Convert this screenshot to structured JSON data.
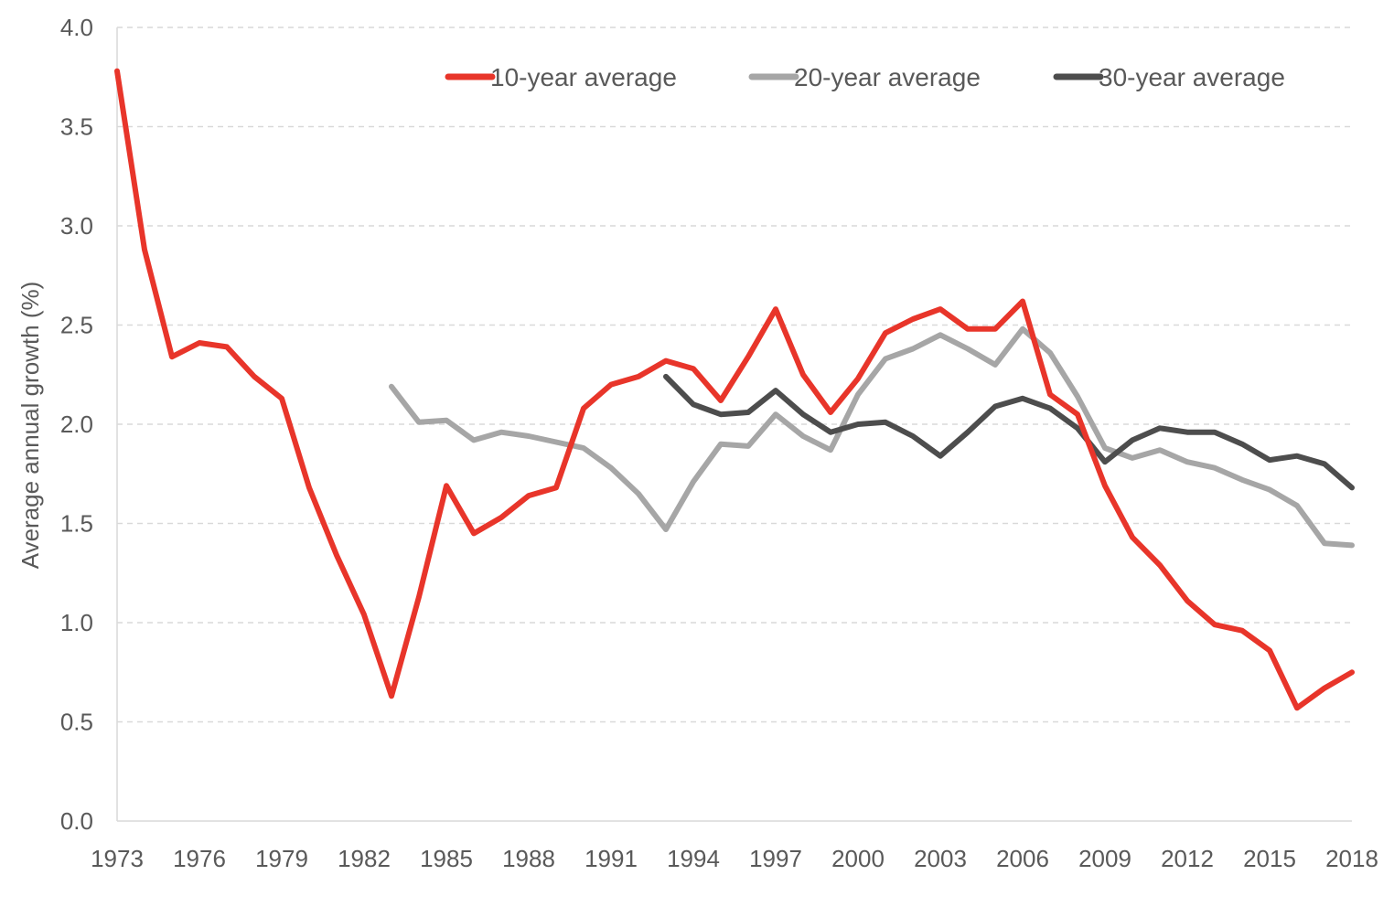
{
  "chart_data": {
    "type": "line",
    "title": "",
    "xlabel": "",
    "ylabel": "Average annual growth (%)",
    "xlim": [
      1973,
      2018
    ],
    "ylim": [
      0,
      4
    ],
    "yticks": [
      "0.0",
      "0.5",
      "1.0",
      "1.5",
      "2.0",
      "2.5",
      "3.0",
      "3.5",
      "4.0"
    ],
    "xticks": [
      "1973",
      "1976",
      "1979",
      "1982",
      "1985",
      "1988",
      "1991",
      "1994",
      "1997",
      "2000",
      "2003",
      "2006",
      "2009",
      "2012",
      "2015",
      "2018"
    ],
    "grid": "horizontal dashed",
    "legend_position": "top-right",
    "series": [
      {
        "name": "10-year average",
        "color": "#E8352A",
        "x": [
          1973,
          1974,
          1975,
          1976,
          1977,
          1978,
          1979,
          1980,
          1981,
          1982,
          1983,
          1984,
          1985,
          1986,
          1987,
          1988,
          1989,
          1990,
          1991,
          1992,
          1993,
          1994,
          1995,
          1996,
          1997,
          1998,
          1999,
          2000,
          2001,
          2002,
          2003,
          2004,
          2005,
          2006,
          2007,
          2008,
          2009,
          2010,
          2011,
          2012,
          2013,
          2014,
          2015,
          2016,
          2017,
          2018
        ],
        "values": [
          3.78,
          2.88,
          2.34,
          2.41,
          2.39,
          2.24,
          2.13,
          1.68,
          1.34,
          1.04,
          0.63,
          1.13,
          1.69,
          1.45,
          1.53,
          1.64,
          1.68,
          2.08,
          2.2,
          2.24,
          2.32,
          2.28,
          2.12,
          2.34,
          2.58,
          2.25,
          2.06,
          2.23,
          2.46,
          2.53,
          2.58,
          2.48,
          2.48,
          2.62,
          2.15,
          2.05,
          1.69,
          1.43,
          1.29,
          1.11,
          0.99,
          0.96,
          0.86,
          0.57,
          0.67,
          0.75
        ]
      },
      {
        "name": "20-year average",
        "color": "#A6A6A6",
        "x": [
          1983,
          1984,
          1985,
          1986,
          1987,
          1988,
          1989,
          1990,
          1991,
          1992,
          1993,
          1994,
          1995,
          1996,
          1997,
          1998,
          1999,
          2000,
          2001,
          2002,
          2003,
          2004,
          2005,
          2006,
          2007,
          2008,
          2009,
          2010,
          2011,
          2012,
          2013,
          2014,
          2015,
          2016,
          2017,
          2018
        ],
        "values": [
          2.19,
          2.01,
          2.02,
          1.92,
          1.96,
          1.94,
          1.91,
          1.88,
          1.78,
          1.65,
          1.47,
          1.71,
          1.9,
          1.89,
          2.05,
          1.94,
          1.87,
          2.15,
          2.33,
          2.38,
          2.45,
          2.38,
          2.3,
          2.48,
          2.36,
          2.14,
          1.88,
          1.83,
          1.87,
          1.81,
          1.78,
          1.72,
          1.67,
          1.59,
          1.4,
          1.39
        ]
      },
      {
        "name": "30-year average",
        "color": "#4D4D4D",
        "x": [
          1993,
          1994,
          1995,
          1996,
          1997,
          1998,
          1999,
          2000,
          2001,
          2002,
          2003,
          2004,
          2005,
          2006,
          2007,
          2008,
          2009,
          2010,
          2011,
          2012,
          2013,
          2014,
          2015,
          2016,
          2017,
          2018
        ],
        "values": [
          2.24,
          2.1,
          2.05,
          2.06,
          2.17,
          2.05,
          1.96,
          2.0,
          2.01,
          1.94,
          1.84,
          1.96,
          2.09,
          2.13,
          2.08,
          1.98,
          1.81,
          1.92,
          1.98,
          1.96,
          1.96,
          1.9,
          1.82,
          1.84,
          1.8,
          1.68
        ]
      }
    ]
  }
}
